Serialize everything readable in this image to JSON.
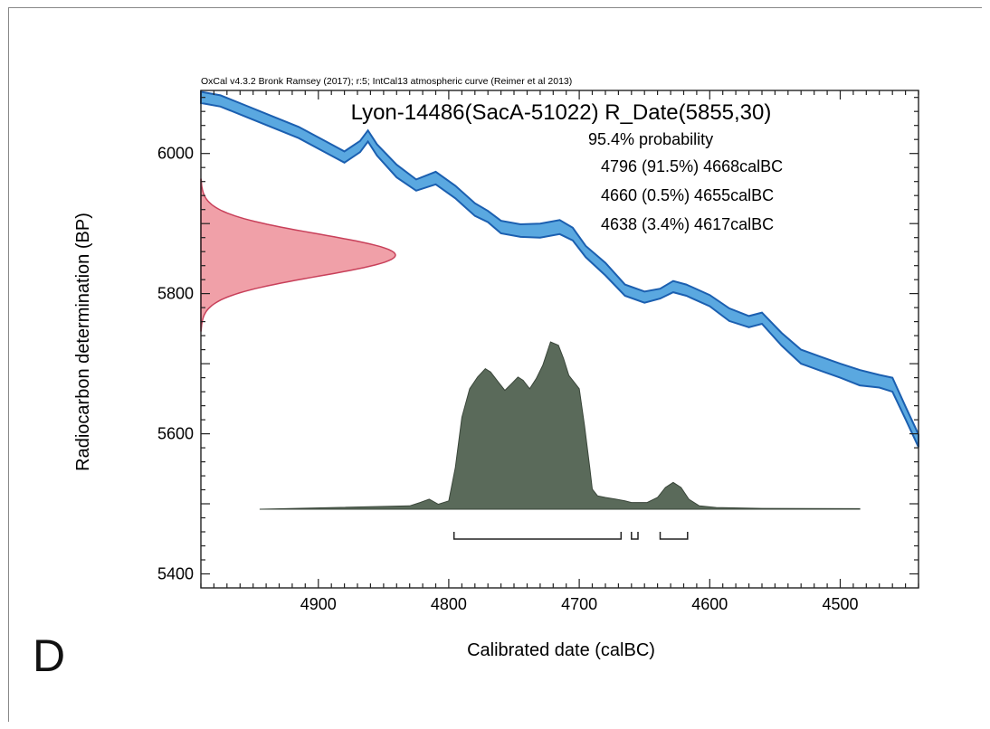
{
  "header": "OxCal v4.3.2 Bronk Ramsey (2017); r:5; IntCal13 atmospheric curve (Reimer et al 2013)",
  "panel_label": "D",
  "chart_data": {
    "type": "area",
    "title": "Lyon-14486(SacA-51022) R_Date(5855,30)",
    "xlabel": "Calibrated date (calBC)",
    "ylabel": "Radiocarbon determination (BP)",
    "xlim": [
      4990,
      4440
    ],
    "ylim": [
      5380,
      6090
    ],
    "x_ticks": [
      4900,
      4800,
      4700,
      4600,
      4500
    ],
    "y_ticks": [
      5400,
      5600,
      5800,
      6000
    ],
    "ranges_title": "95.4% probability",
    "ranges": [
      {
        "label": "4796 (91.5%) 4668calBC",
        "from": 4796,
        "to": 4668
      },
      {
        "label": "4660 (0.5%) 4655calBC",
        "from": 4660,
        "to": 4655
      },
      {
        "label": "4638 (3.4%) 4617calBC",
        "from": 4638,
        "to": 4617
      }
    ],
    "calibration_curve": {
      "name": "IntCal13",
      "color": "#5aa8e0",
      "x": [
        4990,
        4975,
        4955,
        4935,
        4915,
        4895,
        4880,
        4868,
        4862,
        4855,
        4840,
        4825,
        4810,
        4795,
        4780,
        4770,
        4760,
        4745,
        4730,
        4715,
        4705,
        4695,
        4680,
        4665,
        4650,
        4638,
        4628,
        4618,
        4600,
        4585,
        4570,
        4560,
        4545,
        4530,
        4515,
        4500,
        4485,
        4470,
        4460,
        4450,
        4440
      ],
      "y": [
        6080,
        6075,
        6060,
        6045,
        6030,
        6010,
        5995,
        6010,
        6025,
        6005,
        5975,
        5955,
        5965,
        5945,
        5920,
        5910,
        5895,
        5890,
        5890,
        5895,
        5885,
        5860,
        5835,
        5805,
        5795,
        5800,
        5810,
        5805,
        5790,
        5770,
        5760,
        5765,
        5735,
        5710,
        5700,
        5690,
        5680,
        5675,
        5670,
        5630,
        5590
      ],
      "band_width_bp": [
        16,
        16,
        16,
        16,
        16,
        16,
        16,
        16,
        16,
        16,
        18,
        16,
        18,
        18,
        18,
        16,
        18,
        18,
        20,
        20,
        18,
        16,
        18,
        16,
        16,
        14,
        16,
        16,
        16,
        18,
        16,
        16,
        18,
        20,
        20,
        20,
        22,
        18,
        20,
        18,
        18
      ]
    },
    "radiocarbon_date": {
      "mean": 5855,
      "sd": 30,
      "color": "#f0a0a8"
    },
    "posterior": {
      "color": "#5a6a5a",
      "x": [
        4945,
        4830,
        4822,
        4815,
        4808,
        4800,
        4795,
        4790,
        4784,
        4778,
        4772,
        4768,
        4762,
        4757,
        4752,
        4747,
        4743,
        4738,
        4733,
        4728,
        4722,
        4716,
        4712,
        4708,
        4704,
        4700,
        4696,
        4692,
        4690,
        4686,
        4680,
        4672,
        4665,
        4660,
        4655,
        4648,
        4640,
        4634,
        4628,
        4622,
        4616,
        4608,
        4595,
        4560,
        4485
      ],
      "y": [
        0,
        0.02,
        0.04,
        0.06,
        0.03,
        0.05,
        0.25,
        0.55,
        0.72,
        0.79,
        0.84,
        0.82,
        0.76,
        0.71,
        0.75,
        0.79,
        0.77,
        0.72,
        0.78,
        0.86,
        1.0,
        0.98,
        0.9,
        0.8,
        0.76,
        0.72,
        0.5,
        0.25,
        0.12,
        0.08,
        0.07,
        0.06,
        0.05,
        0.04,
        0.04,
        0.04,
        0.07,
        0.13,
        0.16,
        0.13,
        0.06,
        0.02,
        0.01,
        0.005,
        0.003
      ]
    }
  }
}
